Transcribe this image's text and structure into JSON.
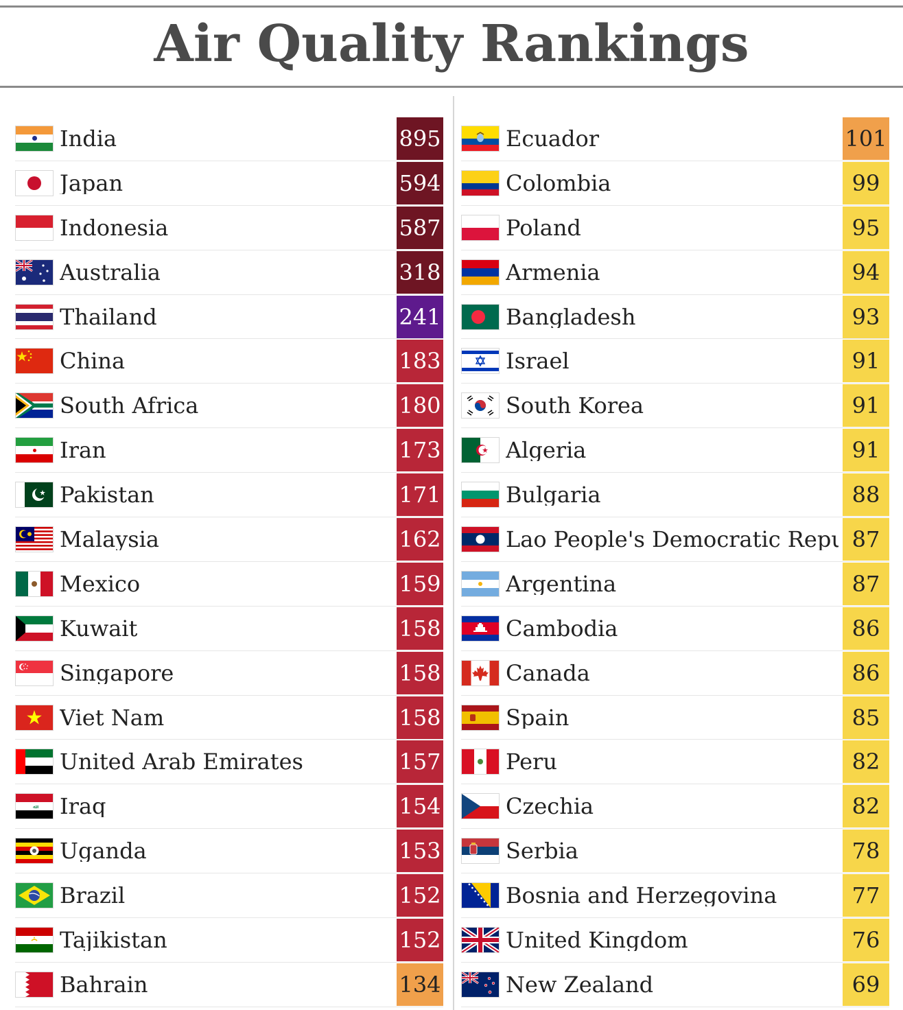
{
  "title": "Air Quality Rankings",
  "colors": {
    "hazardous": "#6e1523",
    "very_unhealthy": "#5e1a8d",
    "unhealthy": "#b82638",
    "unhealthy_sensitive": "#f0a04b",
    "moderate": "#f7d64a"
  },
  "left": [
    {
      "country": "India",
      "value": "895",
      "flag": "in-flag-icon",
      "level": "hazardous"
    },
    {
      "country": "Japan",
      "value": "594",
      "flag": "jp-flag-icon",
      "level": "hazardous"
    },
    {
      "country": "Indonesia",
      "value": "587",
      "flag": "id-flag-icon",
      "level": "hazardous"
    },
    {
      "country": "Australia",
      "value": "318",
      "flag": "au-flag-icon",
      "level": "hazardous"
    },
    {
      "country": "Thailand",
      "value": "241",
      "flag": "th-flag-icon",
      "level": "very_unhealthy"
    },
    {
      "country": "China",
      "value": "183",
      "flag": "cn-flag-icon",
      "level": "unhealthy"
    },
    {
      "country": "South Africa",
      "value": "180",
      "flag": "za-flag-icon",
      "level": "unhealthy"
    },
    {
      "country": "Iran",
      "value": "173",
      "flag": "ir-flag-icon",
      "level": "unhealthy"
    },
    {
      "country": "Pakistan",
      "value": "171",
      "flag": "pk-flag-icon",
      "level": "unhealthy"
    },
    {
      "country": "Malaysia",
      "value": "162",
      "flag": "my-flag-icon",
      "level": "unhealthy"
    },
    {
      "country": "Mexico",
      "value": "159",
      "flag": "mx-flag-icon",
      "level": "unhealthy"
    },
    {
      "country": "Kuwait",
      "value": "158",
      "flag": "kw-flag-icon",
      "level": "unhealthy"
    },
    {
      "country": "Singapore",
      "value": "158",
      "flag": "sg-flag-icon",
      "level": "unhealthy"
    },
    {
      "country": "Viet Nam",
      "value": "158",
      "flag": "vn-flag-icon",
      "level": "unhealthy"
    },
    {
      "country": "United Arab Emirates",
      "value": "157",
      "flag": "ae-flag-icon",
      "level": "unhealthy"
    },
    {
      "country": "Iraq",
      "value": "154",
      "flag": "iq-flag-icon",
      "level": "unhealthy"
    },
    {
      "country": "Uganda",
      "value": "153",
      "flag": "ug-flag-icon",
      "level": "unhealthy"
    },
    {
      "country": "Brazil",
      "value": "152",
      "flag": "br-flag-icon",
      "level": "unhealthy"
    },
    {
      "country": "Tajikistan",
      "value": "152",
      "flag": "tj-flag-icon",
      "level": "unhealthy"
    },
    {
      "country": "Bahrain",
      "value": "134",
      "flag": "bh-flag-icon",
      "level": "unhealthy_sensitive"
    }
  ],
  "right": [
    {
      "country": "Ecuador",
      "value": "101",
      "flag": "ec-flag-icon",
      "level": "unhealthy_sensitive"
    },
    {
      "country": "Colombia",
      "value": "99",
      "flag": "co-flag-icon",
      "level": "moderate"
    },
    {
      "country": "Poland",
      "value": "95",
      "flag": "pl-flag-icon",
      "level": "moderate"
    },
    {
      "country": "Armenia",
      "value": "94",
      "flag": "am-flag-icon",
      "level": "moderate"
    },
    {
      "country": "Bangladesh",
      "value": "93",
      "flag": "bd-flag-icon",
      "level": "moderate"
    },
    {
      "country": "Israel",
      "value": "91",
      "flag": "il-flag-icon",
      "level": "moderate"
    },
    {
      "country": "South Korea",
      "value": "91",
      "flag": "kr-flag-icon",
      "level": "moderate"
    },
    {
      "country": "Algeria",
      "value": "91",
      "flag": "dz-flag-icon",
      "level": "moderate"
    },
    {
      "country": "Bulgaria",
      "value": "88",
      "flag": "bg-flag-icon",
      "level": "moderate"
    },
    {
      "country": "Lao People's Democratic Repub",
      "value": "87",
      "flag": "la-flag-icon",
      "level": "moderate"
    },
    {
      "country": "Argentina",
      "value": "87",
      "flag": "ar-flag-icon",
      "level": "moderate"
    },
    {
      "country": "Cambodia",
      "value": "86",
      "flag": "kh-flag-icon",
      "level": "moderate"
    },
    {
      "country": "Canada",
      "value": "86",
      "flag": "ca-flag-icon",
      "level": "moderate"
    },
    {
      "country": "Spain",
      "value": "85",
      "flag": "es-flag-icon",
      "level": "moderate"
    },
    {
      "country": "Peru",
      "value": "82",
      "flag": "pe-flag-icon",
      "level": "moderate"
    },
    {
      "country": "Czechia",
      "value": "82",
      "flag": "cz-flag-icon",
      "level": "moderate"
    },
    {
      "country": "Serbia",
      "value": "78",
      "flag": "rs-flag-icon",
      "level": "moderate"
    },
    {
      "country": "Bosnia and Herzegovina",
      "value": "77",
      "flag": "ba-flag-icon",
      "level": "moderate"
    },
    {
      "country": "United Kingdom",
      "value": "76",
      "flag": "gb-flag-icon",
      "level": "moderate"
    },
    {
      "country": "New Zealand",
      "value": "69",
      "flag": "nz-flag-icon",
      "level": "moderate"
    }
  ]
}
